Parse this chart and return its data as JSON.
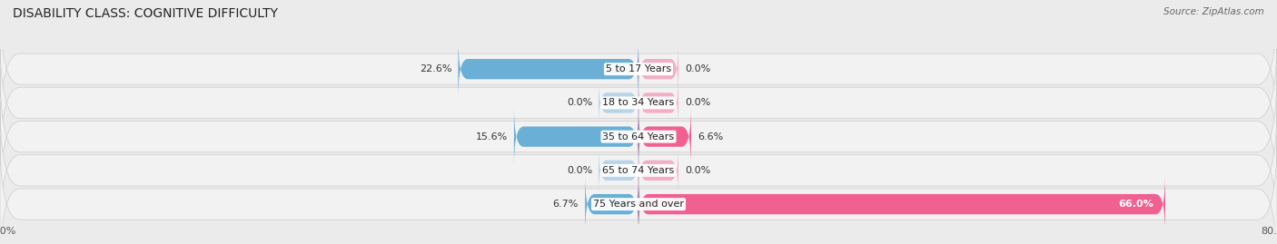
{
  "title": "DISABILITY CLASS: COGNITIVE DIFFICULTY",
  "source_text": "Source: ZipAtlas.com",
  "categories": [
    "5 to 17 Years",
    "18 to 34 Years",
    "35 to 64 Years",
    "65 to 74 Years",
    "75 Years and over"
  ],
  "male_values": [
    22.6,
    0.0,
    15.6,
    0.0,
    6.7
  ],
  "female_values": [
    0.0,
    0.0,
    6.6,
    0.0,
    66.0
  ],
  "male_color_strong": "#6aafd6",
  "male_color_light": "#b8d4e8",
  "female_color_strong": "#f06090",
  "female_color_light": "#f4aec4",
  "axis_max": 80.0,
  "bg_color": "#ebebeb",
  "row_bg_color": "#f2f2f2",
  "title_fontsize": 10,
  "label_fontsize": 8,
  "tick_fontsize": 8,
  "legend_fontsize": 8.5,
  "stub_size": 5.0
}
